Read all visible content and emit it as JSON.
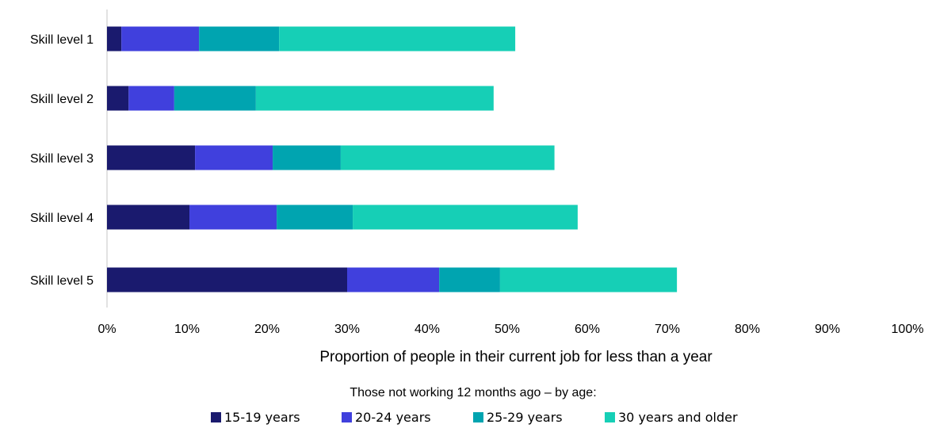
{
  "chart_data": {
    "type": "bar",
    "orientation": "horizontal",
    "stacked": true,
    "categories": [
      "Skill level 1",
      "Skill level 2",
      "Skill level 3",
      "Skill level 4",
      "Skill level 5"
    ],
    "series": [
      {
        "name": "15-19 years",
        "color": "#1a1a6e",
        "values": [
          1.8,
          2.7,
          11.0,
          10.3,
          30.0
        ]
      },
      {
        "name": "20-24 years",
        "color": "#4040dd",
        "values": [
          9.7,
          5.7,
          9.7,
          10.9,
          11.5
        ]
      },
      {
        "name": "25-29 years",
        "color": "#00a4b0",
        "values": [
          10.0,
          10.2,
          8.5,
          9.5,
          7.6
        ]
      },
      {
        "name": "30 years and older",
        "color": "#16cfb6",
        "values": [
          29.5,
          29.7,
          26.7,
          28.1,
          22.1
        ]
      }
    ],
    "xlim": [
      0,
      100
    ],
    "x_ticks": [
      "0%",
      "10%",
      "20%",
      "30%",
      "40%",
      "50%",
      "60%",
      "70%",
      "80%",
      "90%",
      "100%"
    ],
    "xlabel": "Proportion of people in their current job for less than a year",
    "ylabel": "",
    "legend": {
      "title": "Those not working 12 months ago – by age:",
      "position": "bottom"
    },
    "grid": false
  }
}
